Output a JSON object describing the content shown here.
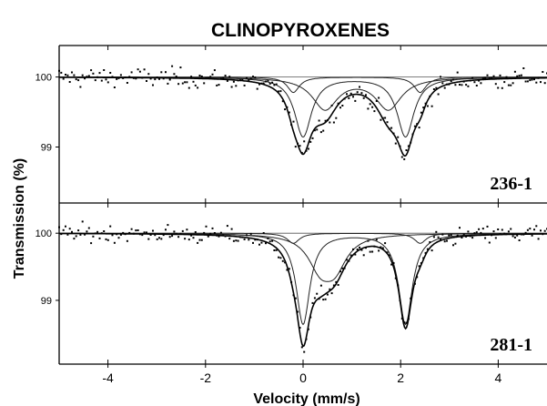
{
  "chart_data": [
    {
      "type": "scatter",
      "title": "CLINOPYROXENES",
      "sample_label": "236-1",
      "xlabel": "Velocity (mm/s)",
      "ylabel": "Transmission (%)",
      "xlim": [
        -5,
        5
      ],
      "ylim": [
        98.2,
        100.45
      ],
      "yticks": [
        100,
        99
      ],
      "ytick_labels": [
        "100",
        "99"
      ],
      "baseline": 100,
      "doublets": [
        {
          "name": "doublet 1",
          "shift": 1.05,
          "split": 2.1,
          "depth": 0.85,
          "hwhm": 0.21
        },
        {
          "name": "doublet 2",
          "shift": 1.1,
          "split": 1.3,
          "depth": 0.45,
          "hwhm": 0.32
        },
        {
          "name": "doublet 3",
          "shift": 1.1,
          "split": 2.6,
          "depth": 0.22,
          "hwhm": 0.15
        }
      ],
      "noise": 0.07,
      "n_points": 230
    },
    {
      "type": "scatter",
      "sample_label": "281-1",
      "xlim": [
        -5,
        5
      ],
      "ylim": [
        98.05,
        100.45
      ],
      "yticks": [
        100,
        99
      ],
      "ytick_labels": [
        "100",
        "99"
      ],
      "baseline": 100,
      "doublets": [
        {
          "name": "doublet 1",
          "shift": 1.05,
          "split": 2.1,
          "depth": 1.35,
          "hwhm": 0.17
        },
        {
          "name": "doublet 2",
          "shift": 0.5,
          "split": 0.3,
          "depth": 0.45,
          "hwhm": 0.3
        },
        {
          "name": "doublet 3",
          "shift": 1.1,
          "split": 2.6,
          "depth": 0.15,
          "hwhm": 0.15
        }
      ],
      "noise": 0.065,
      "n_points": 230
    }
  ],
  "xaxis": {
    "ticks": [
      -4,
      -2,
      0,
      2,
      4
    ],
    "tick_labels": [
      "-4",
      "-2",
      "0",
      "2",
      "4"
    ]
  }
}
